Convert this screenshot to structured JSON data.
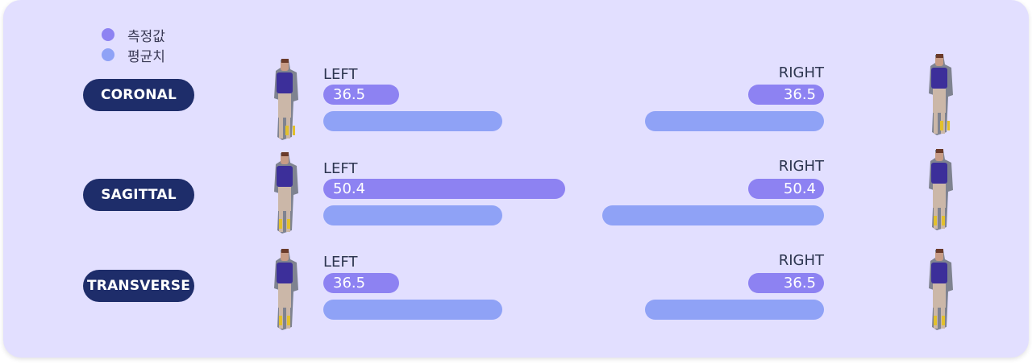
{
  "legend": {
    "measured": {
      "label": "측정값",
      "color": "#8d82f2"
    },
    "average": {
      "label": "평균치",
      "color": "#8fa2f6"
    }
  },
  "rows": [
    {
      "plane": "CORONAL",
      "left_label": "LEFT",
      "right_label": "RIGHT",
      "left_value": "36.5",
      "right_value": "36.5"
    },
    {
      "plane": "SAGITTAL",
      "left_label": "LEFT",
      "right_label": "RIGHT",
      "left_value": "50.4",
      "right_value": "50.4"
    },
    {
      "plane": "TRANSVERSE",
      "left_label": "LEFT",
      "right_label": "RIGHT",
      "left_value": "36.5",
      "right_value": "36.5"
    }
  ],
  "colors": {
    "panel": "#e2dfff",
    "pill": "#1e2d6a",
    "measured_bar": "#8d82f2",
    "average_bar": "#8fa2f6"
  },
  "icons": {
    "figure": "person-figure-icon"
  }
}
